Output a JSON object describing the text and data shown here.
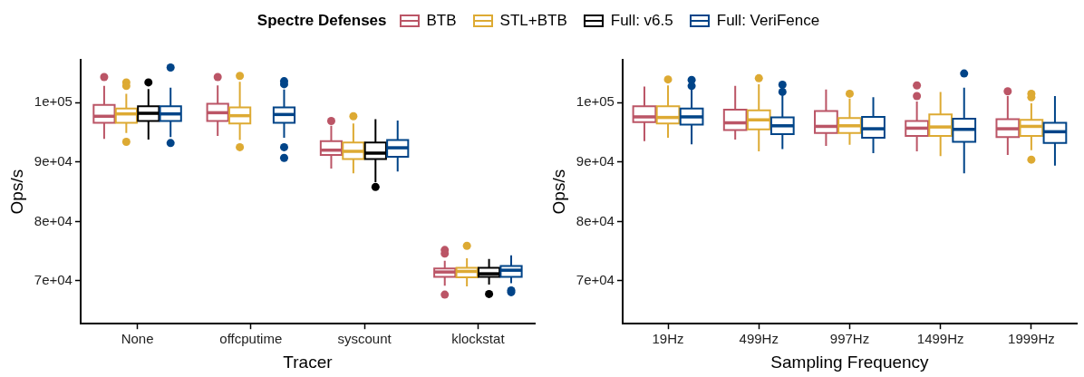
{
  "chart_data": [
    {
      "type": "box",
      "xlabel": "Tracer",
      "ylabel": "Ops/s",
      "legend": "top",
      "legend_title": "Spectre Defenses",
      "categories": [
        "None",
        "offcputime",
        "syscount",
        "klockstat"
      ],
      "ylim": [
        62800,
        107200
      ],
      "yticks": [
        {
          "value": 70000,
          "label": "7e+04"
        },
        {
          "value": 80000,
          "label": "8e+04"
        },
        {
          "value": 90000,
          "label": "9e+04"
        },
        {
          "value": 100000,
          "label": "1e+05"
        }
      ],
      "series": [
        {
          "name": "BTB",
          "color": "#bb5566",
          "boxes": [
            {
              "low": 93900,
              "q1": 96600,
              "median": 97700,
              "q3": 99600,
              "high": 102800,
              "outliers": [
                104300
              ]
            },
            {
              "low": 94400,
              "q1": 96900,
              "median": 98300,
              "q3": 99800,
              "high": 102900,
              "outliers": [
                104300
              ]
            },
            {
              "low": 88900,
              "q1": 91200,
              "median": 92000,
              "q3": 93500,
              "high": 96100,
              "outliers": [
                96900
              ]
            },
            {
              "low": 69200,
              "q1": 70700,
              "median": 71500,
              "q3": 72100,
              "high": 73400,
              "outliers": [
                75200,
                74600,
                67700
              ]
            }
          ]
        },
        {
          "name": "STL+BTB",
          "color": "#ddaa33",
          "boxes": [
            {
              "low": 94900,
              "q1": 96600,
              "median": 98100,
              "q3": 99000,
              "high": 101500,
              "outliers": [
                103400,
                102800,
                93400
              ]
            },
            {
              "low": 93700,
              "q1": 96500,
              "median": 97800,
              "q3": 99200,
              "high": 103500,
              "outliers": [
                104500,
                92500
              ]
            },
            {
              "low": 88100,
              "q1": 90500,
              "median": 91800,
              "q3": 93300,
              "high": 96500,
              "outliers": [
                97700
              ]
            },
            {
              "low": 69100,
              "q1": 70600,
              "median": 71600,
              "q3": 72200,
              "high": 73800,
              "outliers": [
                75900
              ]
            }
          ]
        },
        {
          "name": "Full: v6.5",
          "color": "#000000",
          "boxes": [
            {
              "low": 93800,
              "q1": 96900,
              "median": 98200,
              "q3": 99400,
              "high": 102300,
              "outliers": [
                103400
              ]
            },
            null,
            {
              "low": 86600,
              "q1": 90500,
              "median": 91500,
              "q3": 93300,
              "high": 97200,
              "outliers": [
                85800
              ]
            },
            {
              "low": 69400,
              "q1": 70700,
              "median": 71200,
              "q3": 72200,
              "high": 73700,
              "outliers": [
                67800
              ]
            }
          ]
        },
        {
          "name": "Full: VeriFence",
          "color": "#004488",
          "boxes": [
            {
              "low": 94200,
              "q1": 96900,
              "median": 98100,
              "q3": 99400,
              "high": 102500,
              "outliers": [
                105900,
                93200
              ]
            },
            {
              "low": 94100,
              "q1": 96600,
              "median": 98000,
              "q3": 99200,
              "high": 102200,
              "outliers": [
                103600,
                103100,
                92500,
                90700
              ]
            },
            {
              "low": 88400,
              "q1": 90900,
              "median": 92400,
              "q3": 93700,
              "high": 97000
            },
            {
              "low": 69600,
              "q1": 70700,
              "median": 71800,
              "q3": 72500,
              "high": 74300,
              "outliers": [
                68400,
                68100
              ]
            }
          ]
        }
      ]
    },
    {
      "type": "box",
      "xlabel": "Sampling Frequency",
      "ylabel": "Ops/s",
      "categories": [
        "19Hz",
        "499Hz",
        "997Hz",
        "1499Hz",
        "1999Hz"
      ],
      "ylim": [
        62800,
        107200
      ],
      "yticks": [
        {
          "value": 70000,
          "label": "7e+04"
        },
        {
          "value": 80000,
          "label": "8e+04"
        },
        {
          "value": 90000,
          "label": "9e+04"
        },
        {
          "value": 100000,
          "label": "1e+05"
        }
      ],
      "series": [
        {
          "color": "#bb5566",
          "boxes": [
            {
              "low": 93500,
              "q1": 96700,
              "median": 97600,
              "q3": 99400,
              "high": 102700
            },
            {
              "low": 93800,
              "q1": 95400,
              "median": 96600,
              "q3": 98800,
              "high": 102800
            },
            {
              "low": 92700,
              "q1": 94900,
              "median": 96000,
              "q3": 98600,
              "high": 102200
            },
            {
              "low": 91800,
              "q1": 94400,
              "median": 95700,
              "q3": 96900,
              "high": 100200,
              "outliers": [
                102900,
                101100
              ]
            },
            {
              "low": 91200,
              "q1": 94200,
              "median": 95600,
              "q3": 97200,
              "high": 101100,
              "outliers": [
                101900
              ]
            }
          ]
        },
        {
          "color": "#ddaa33",
          "boxes": [
            {
              "low": 94100,
              "q1": 96500,
              "median": 97500,
              "q3": 99400,
              "high": 102900,
              "outliers": [
                103900
              ]
            },
            {
              "low": 91800,
              "q1": 95500,
              "median": 97100,
              "q3": 98700,
              "high": 103100,
              "outliers": [
                104100
              ]
            },
            {
              "low": 92900,
              "q1": 94900,
              "median": 96100,
              "q3": 97400,
              "high": 100700,
              "outliers": [
                101500
              ]
            },
            {
              "low": 91000,
              "q1": 94400,
              "median": 95900,
              "q3": 98000,
              "high": 101800
            },
            {
              "low": 92000,
              "q1": 94400,
              "median": 96000,
              "q3": 97100,
              "high": 99900,
              "outliers": [
                101500,
                100900,
                90400
              ]
            }
          ]
        },
        {
          "color": "#004488",
          "boxes": [
            {
              "low": 93000,
              "q1": 96300,
              "median": 97600,
              "q3": 99000,
              "high": 102200,
              "outliers": [
                103800,
                102800
              ]
            },
            {
              "low": 92200,
              "q1": 94700,
              "median": 96100,
              "q3": 97500,
              "high": 101200,
              "outliers": [
                103000,
                101800
              ]
            },
            {
              "low": 91500,
              "q1": 94100,
              "median": 95600,
              "q3": 97600,
              "high": 100900
            },
            {
              "low": 88100,
              "q1": 93400,
              "median": 95500,
              "q3": 97300,
              "high": 102500,
              "outliers": [
                104900
              ]
            },
            {
              "low": 89400,
              "q1": 93200,
              "median": 95100,
              "q3": 96600,
              "high": 101100
            }
          ]
        }
      ]
    }
  ]
}
